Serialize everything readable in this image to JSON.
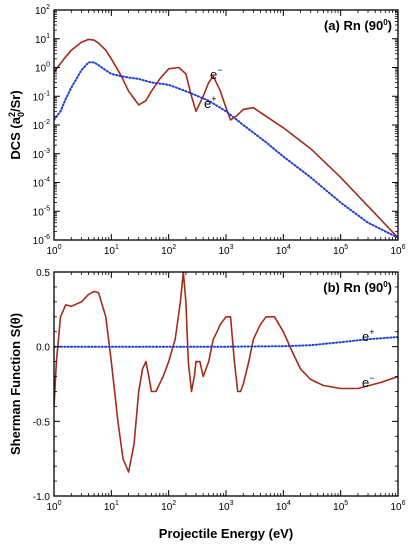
{
  "chart_data": [
    {
      "type": "line",
      "panel_label": "(a) Rn (90",
      "panel_label_sup": "0",
      "panel_label_end": ")",
      "ylabel_main": "DCS (a",
      "ylabel_sub": "0",
      "ylabel_sup": "2",
      "ylabel_end": "/Sr)",
      "x_scale": "log",
      "y_scale": "log",
      "xlim": [
        1,
        1000000
      ],
      "ylim": [
        1e-06,
        100
      ],
      "x_ticks": [
        1,
        10,
        100,
        1000,
        10000,
        100000,
        1000000
      ],
      "x_tick_labels": [
        {
          "base": "10",
          "exp": "0"
        },
        {
          "base": "10",
          "exp": "1"
        },
        {
          "base": "10",
          "exp": "2"
        },
        {
          "base": "10",
          "exp": "3"
        },
        {
          "base": "10",
          "exp": "4"
        },
        {
          "base": "10",
          "exp": "5"
        },
        {
          "base": "10",
          "exp": "6"
        }
      ],
      "y_ticks": [
        1e-06,
        1e-05,
        0.0001,
        0.001,
        0.01,
        0.1,
        1,
        10,
        100
      ],
      "y_tick_labels": [
        {
          "base": "10",
          "exp": "-6"
        },
        {
          "base": "10",
          "exp": "-5"
        },
        {
          "base": "10",
          "exp": "-4"
        },
        {
          "base": "10",
          "exp": "-3"
        },
        {
          "base": "10",
          "exp": "-2"
        },
        {
          "base": "10",
          "exp": "-1"
        },
        {
          "base": "10",
          "exp": "0"
        },
        {
          "base": "10",
          "exp": "1"
        },
        {
          "base": "10",
          "exp": "2"
        }
      ],
      "series": [
        {
          "name": "e−",
          "name_base": "e",
          "name_sup": "−",
          "color": "#a52a1a",
          "style": "solid",
          "x": [
            1,
            1.5,
            2,
            3,
            4,
            5,
            6,
            8,
            10,
            15,
            20,
            30,
            40,
            50,
            70,
            100,
            150,
            200,
            250,
            300,
            400,
            500,
            600,
            800,
            1000,
            1200,
            1500,
            2000,
            3000,
            5000,
            10000,
            30000,
            100000,
            300000,
            1000000
          ],
          "y": [
            0.7,
            2.0,
            4.0,
            7.5,
            9.5,
            9.0,
            7.0,
            4.0,
            2.0,
            0.5,
            0.15,
            0.05,
            0.07,
            0.15,
            0.4,
            0.9,
            1.0,
            0.6,
            0.1,
            0.03,
            0.1,
            0.3,
            0.5,
            0.15,
            0.04,
            0.015,
            0.02,
            0.035,
            0.04,
            0.02,
            0.008,
            0.0015,
            0.00015,
            1.5e-05,
            1.2e-06
          ]
        },
        {
          "name": "e+",
          "name_base": "e",
          "name_sup": "+",
          "color": "#1f3fd6",
          "style": "dotted",
          "x": [
            1,
            1.3,
            1.6,
            2,
            3,
            4,
            5,
            6,
            8,
            10,
            15,
            20,
            30,
            50,
            100,
            200,
            500,
            1000,
            2000,
            5000,
            10000,
            30000,
            100000,
            300000,
            1000000
          ],
          "y": [
            0.015,
            0.03,
            0.08,
            0.2,
            0.8,
            1.5,
            1.5,
            1.2,
            0.8,
            0.6,
            0.5,
            0.45,
            0.4,
            0.3,
            0.25,
            0.15,
            0.07,
            0.03,
            0.01,
            0.0025,
            0.0008,
            0.00015,
            2e-05,
            4e-06,
            1.2e-06
          ]
        }
      ]
    },
    {
      "type": "line",
      "panel_label": "(b) Rn (90",
      "panel_label_sup": "0",
      "panel_label_end": ")",
      "ylabel": "Sherman Function S(θ)",
      "xlabel": "Projectile Energy (eV)",
      "x_scale": "log",
      "y_scale": "linear",
      "xlim": [
        1,
        1000000
      ],
      "ylim": [
        -1.0,
        0.5
      ],
      "x_ticks": [
        1,
        10,
        100,
        1000,
        10000,
        100000,
        1000000
      ],
      "x_tick_labels": [
        {
          "base": "10",
          "exp": "0"
        },
        {
          "base": "10",
          "exp": "1"
        },
        {
          "base": "10",
          "exp": "2"
        },
        {
          "base": "10",
          "exp": "3"
        },
        {
          "base": "10",
          "exp": "4"
        },
        {
          "base": "10",
          "exp": "5"
        },
        {
          "base": "10",
          "exp": "6"
        }
      ],
      "y_ticks": [
        -1.0,
        -0.5,
        0.0,
        0.5
      ],
      "y_tick_labels": [
        "-1.0",
        "-0.5",
        "0.0",
        "0.5"
      ],
      "series": [
        {
          "name": "e−",
          "name_base": "e",
          "name_sup": "−",
          "color": "#a52a1a",
          "style": "solid",
          "x": [
            1,
            1.1,
            1.3,
            1.6,
            2,
            3,
            4,
            5,
            6,
            8,
            10,
            13,
            16,
            20,
            25,
            30,
            35,
            40,
            45,
            50,
            60,
            80,
            100,
            130,
            160,
            180,
            200,
            220,
            250,
            280,
            300,
            350,
            400,
            500,
            600,
            700,
            800,
            1000,
            1200,
            1400,
            1600,
            1800,
            2000,
            2500,
            3000,
            4000,
            5000,
            7000,
            10000,
            15000,
            20000,
            30000,
            50000,
            100000,
            200000,
            500000,
            1000000
          ],
          "y": [
            -0.4,
            -0.1,
            0.2,
            0.28,
            0.27,
            0.3,
            0.35,
            0.37,
            0.36,
            0.2,
            -0.1,
            -0.5,
            -0.75,
            -0.84,
            -0.65,
            -0.3,
            -0.15,
            -0.1,
            -0.2,
            -0.3,
            -0.3,
            -0.2,
            -0.1,
            0.05,
            0.3,
            0.5,
            0.3,
            -0.1,
            -0.3,
            -0.2,
            -0.1,
            -0.1,
            -0.2,
            -0.1,
            0.05,
            0.1,
            0.15,
            0.2,
            0.2,
            -0.1,
            -0.3,
            -0.3,
            -0.25,
            -0.1,
            0.05,
            0.15,
            0.2,
            0.2,
            0.1,
            -0.05,
            -0.15,
            -0.22,
            -0.26,
            -0.28,
            -0.28,
            -0.24,
            -0.2
          ]
        },
        {
          "name": "e+",
          "name_base": "e",
          "name_sup": "+",
          "color": "#1f3fd6",
          "style": "dotted",
          "x": [
            1,
            10,
            100,
            1000,
            10000,
            30000,
            100000,
            300000,
            1000000
          ],
          "y": [
            0.0,
            0.0,
            0.0,
            0.0,
            0.003,
            0.01,
            0.03,
            0.05,
            0.065
          ]
        }
      ]
    }
  ]
}
